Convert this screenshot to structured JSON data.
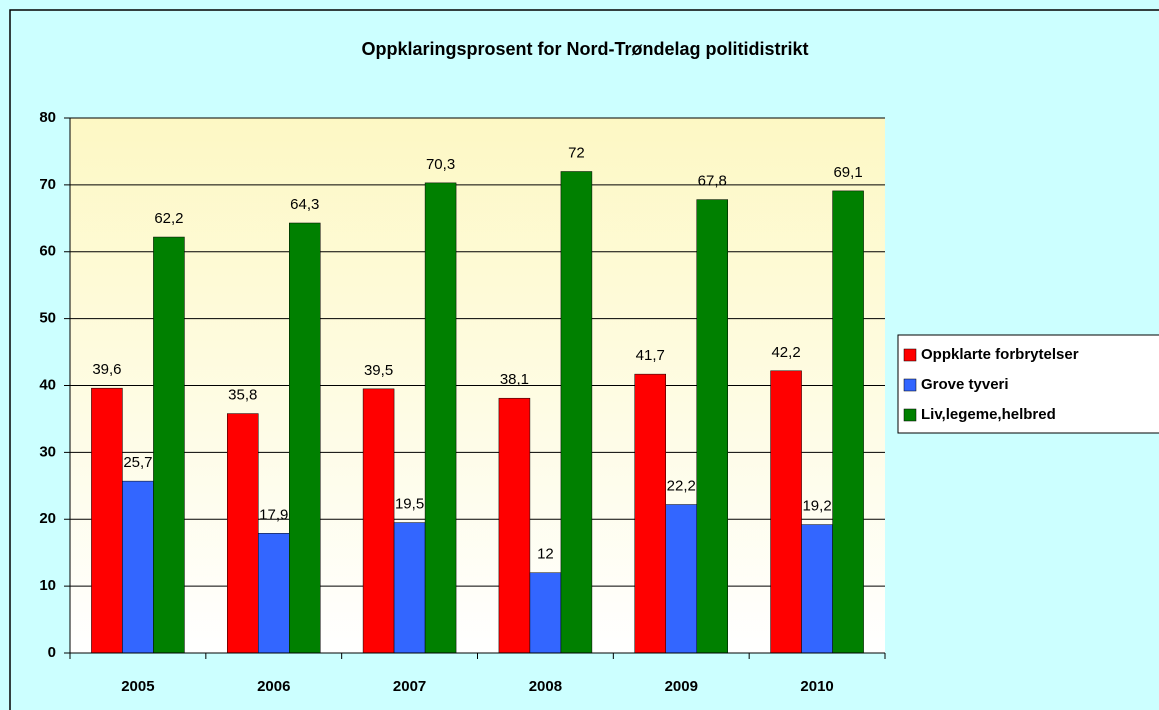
{
  "chart_data": {
    "type": "bar",
    "title": "Oppklaringsprosent for Nord-Trøndelag politidistrikt",
    "categories": [
      "2005",
      "2006",
      "2007",
      "2008",
      "2009",
      "2010"
    ],
    "series": [
      {
        "name": "Oppklarte forbrytelser",
        "color": "#ff0000",
        "values": [
          39.6,
          35.8,
          39.5,
          38.1,
          41.7,
          42.2
        ],
        "value_labels": [
          "39,6",
          "35,8",
          "39,5",
          "38,1",
          "41,7",
          "42,2"
        ]
      },
      {
        "name": "Grove tyveri",
        "color": "#3366ff",
        "values": [
          25.7,
          17.9,
          19.5,
          12,
          22.2,
          19.2
        ],
        "value_labels": [
          "25,7",
          "17,9",
          "19,5",
          "12",
          "22,2",
          "19,2"
        ]
      },
      {
        "name": "Liv,legeme,helbred",
        "color": "#008000",
        "values": [
          62.2,
          64.3,
          70.3,
          72,
          67.8,
          69.1
        ],
        "value_labels": [
          "62,2",
          "64,3",
          "70,3",
          "72",
          "67,8",
          "69,1"
        ]
      }
    ],
    "ylim": [
      0,
      80
    ],
    "yticks": [
      0,
      10,
      20,
      30,
      40,
      50,
      60,
      70,
      80
    ],
    "grid": true,
    "legend": "right"
  }
}
